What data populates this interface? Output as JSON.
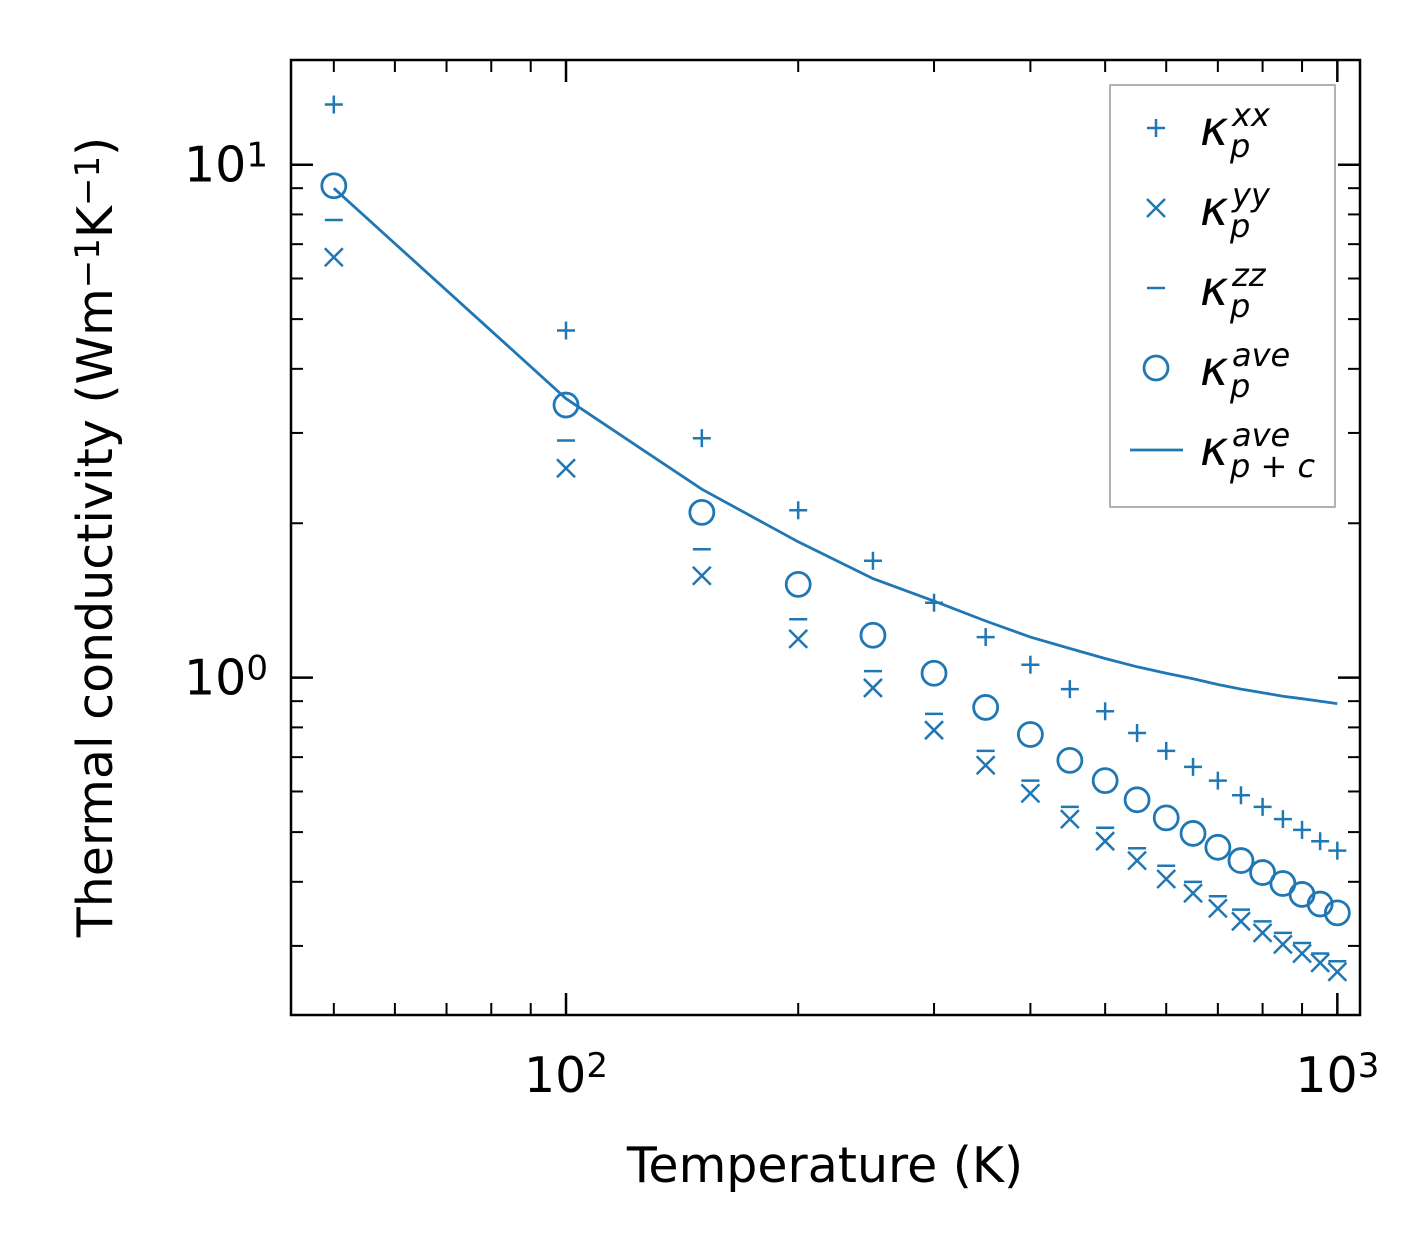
{
  "chart_data": {
    "type": "scatter",
    "title": "",
    "xlabel": "Temperature (K)",
    "ylabel": "Thermal conductivity (Wm⁻¹K⁻¹)",
    "xscale": "log",
    "yscale": "log",
    "xlim": [
      44,
      1070
    ],
    "ylim": [
      0.22,
      16
    ],
    "x_ticks": [
      {
        "base": "10",
        "exp": "2",
        "value": 100
      },
      {
        "base": "10",
        "exp": "3",
        "value": 1000
      }
    ],
    "y_ticks": [
      {
        "base": "10",
        "exp": "0",
        "value": 1
      },
      {
        "base": "10",
        "exp": "1",
        "value": 10
      }
    ],
    "legend_position": "top-right",
    "color": "#1f77b4",
    "x": [
      50,
      100,
      150,
      200,
      250,
      300,
      350,
      400,
      450,
      500,
      550,
      600,
      650,
      700,
      750,
      800,
      850,
      900,
      950,
      1000
    ],
    "series": [
      {
        "key": "xx",
        "name": "κ_p^xx",
        "sym": "κ",
        "sub": "p",
        "sup": "xx",
        "marker": "plus",
        "values": [
          13.1,
          4.75,
          2.93,
          2.12,
          1.69,
          1.4,
          1.2,
          1.06,
          0.95,
          0.86,
          0.78,
          0.72,
          0.67,
          0.63,
          0.59,
          0.56,
          0.53,
          0.505,
          0.48,
          0.46
        ]
      },
      {
        "key": "yy",
        "name": "κ_p^yy",
        "sym": "κ",
        "sub": "p",
        "sup": "yy",
        "marker": "x",
        "values": [
          6.6,
          2.56,
          1.58,
          1.19,
          0.955,
          0.79,
          0.675,
          0.595,
          0.53,
          0.48,
          0.44,
          0.405,
          0.38,
          0.355,
          0.335,
          0.318,
          0.302,
          0.29,
          0.278,
          0.267
        ]
      },
      {
        "key": "zz",
        "name": "κ_p^zz",
        "sym": "κ",
        "sub": "p",
        "sup": "zz",
        "marker": "hline",
        "values": [
          7.8,
          2.9,
          1.78,
          1.3,
          1.03,
          0.85,
          0.72,
          0.63,
          0.56,
          0.51,
          0.465,
          0.43,
          0.4,
          0.375,
          0.353,
          0.335,
          0.318,
          0.304,
          0.29,
          0.28
        ]
      },
      {
        "key": "ave",
        "name": "κ_p^ave",
        "sym": "κ",
        "sub": "p",
        "sup": "ave",
        "marker": "circle",
        "values": [
          9.1,
          3.4,
          2.1,
          1.52,
          1.21,
          1.02,
          0.875,
          0.775,
          0.69,
          0.63,
          0.578,
          0.533,
          0.497,
          0.467,
          0.44,
          0.417,
          0.397,
          0.378,
          0.362,
          0.348
        ]
      },
      {
        "key": "pc",
        "name": "κ_p+c^ave",
        "sym": "κ",
        "sub": "p + c",
        "sup": "ave",
        "marker": "line",
        "values": [
          9.0,
          3.5,
          2.33,
          1.84,
          1.56,
          1.41,
          1.29,
          1.2,
          1.14,
          1.09,
          1.05,
          1.02,
          0.995,
          0.97,
          0.95,
          0.935,
          0.92,
          0.91,
          0.9,
          0.89
        ]
      }
    ]
  }
}
